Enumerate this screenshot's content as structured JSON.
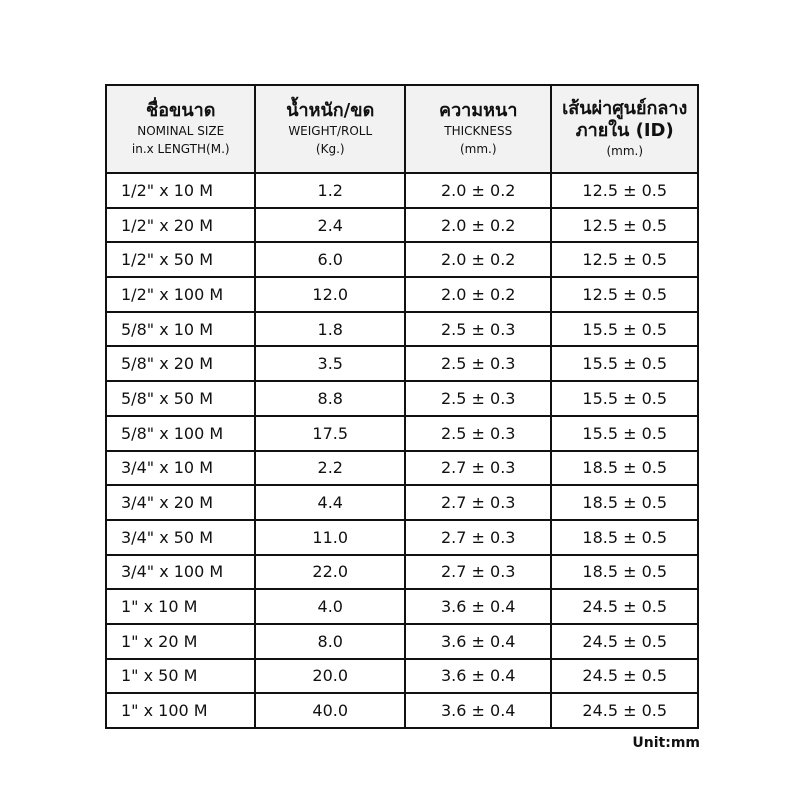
{
  "table": {
    "headers": [
      {
        "thai": "ชื่อขนาด",
        "en1": "NOMINAL SIZE",
        "en2": "in.x LENGTH(M.)"
      },
      {
        "thai": "น้ำหนัก/ขด",
        "en1": "WEIGHT/ROLL",
        "en2": "(Kg.)"
      },
      {
        "thai": "ความหนา",
        "en1": "THICKNESS",
        "en2": "(mm.)"
      },
      {
        "thai": "เส้นผ่าศูนย์กลาง",
        "en1": "ภายใน  (ID)",
        "en2": "(mm.)"
      }
    ],
    "rows": [
      [
        "1/2\" x 10 M",
        "1.2",
        "2.0 ± 0.2",
        "12.5 ± 0.5"
      ],
      [
        "1/2\" x 20 M",
        "2.4",
        "2.0 ± 0.2",
        "12.5 ± 0.5"
      ],
      [
        "1/2\" x 50 M",
        "6.0",
        "2.0 ± 0.2",
        "12.5 ± 0.5"
      ],
      [
        "1/2\" x 100 M",
        "12.0",
        "2.0 ± 0.2",
        "12.5 ± 0.5"
      ],
      [
        "5/8\" x 10 M",
        "1.8",
        "2.5 ± 0.3",
        "15.5 ± 0.5"
      ],
      [
        "5/8\" x 20 M",
        "3.5",
        "2.5 ± 0.3",
        "15.5 ± 0.5"
      ],
      [
        "5/8\" x 50 M",
        "8.8",
        "2.5 ± 0.3",
        "15.5 ± 0.5"
      ],
      [
        "5/8\" x 100 M",
        "17.5",
        "2.5 ± 0.3",
        "15.5 ± 0.5"
      ],
      [
        "3/4\" x 10 M",
        "2.2",
        "2.7 ± 0.3",
        "18.5 ± 0.5"
      ],
      [
        "3/4\" x 20 M",
        "4.4",
        "2.7 ± 0.3",
        "18.5 ± 0.5"
      ],
      [
        "3/4\" x 50 M",
        "11.0",
        "2.7 ± 0.3",
        "18.5 ± 0.5"
      ],
      [
        "3/4\" x 100 M",
        "22.0",
        "2.7 ± 0.3",
        "18.5 ± 0.5"
      ],
      [
        "1\" x 10 M",
        "4.0",
        "3.6 ± 0.4",
        "24.5 ± 0.5"
      ],
      [
        "1\" x 20 M",
        "8.0",
        "3.6 ± 0.4",
        "24.5 ± 0.5"
      ],
      [
        "1\" x 50 M",
        "20.0",
        "3.6 ± 0.4",
        "24.5 ± 0.5"
      ],
      [
        "1\" x 100 M",
        "40.0",
        "3.6 ± 0.4",
        "24.5 ± 0.5"
      ]
    ]
  },
  "unit_label": "Unit:mm"
}
